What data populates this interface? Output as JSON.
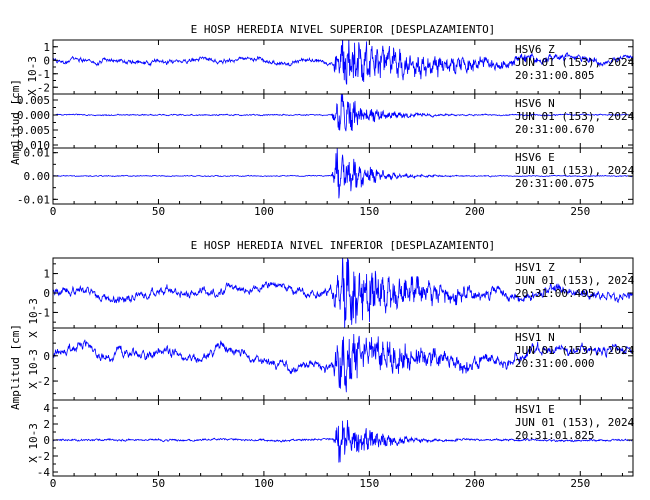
{
  "chart_data": [
    {
      "type": "line",
      "title": "E HOSP HEREDIA NIVEL SUPERIOR [DESPLAZAMIENTO]",
      "ylabel": "Amplitud [cm]",
      "xlim": [
        0,
        275
      ],
      "x_ticks": [
        0,
        50,
        100,
        150,
        200,
        250
      ],
      "x_tick_labels": [
        "0",
        "50",
        "100",
        "150",
        "200",
        "250"
      ],
      "grid": false,
      "color": "#0000ff",
      "series": [
        {
          "name": "HSV6 Z",
          "label_lines": [
            "HSV6 Z",
            "JUN 01 (153), 2024",
            "20:31:00.805"
          ],
          "scale_label": "X 10-3",
          "ylim": [
            -2.5,
            1.5
          ],
          "yticks": [
            -2,
            -1,
            0,
            1
          ],
          "yticklabels": [
            "-2",
            "-1",
            "0",
            "1"
          ],
          "shape": {
            "bg": 0.22,
            "event_amp": 1.8,
            "event_start": 132,
            "peak": 136,
            "decay": 40,
            "drift": 0.5,
            "baseline_tilt": 0.1,
            "seed": 3
          }
        },
        {
          "name": "HSV6 N",
          "label_lines": [
            "HSV6 N",
            "JUN 01 (153), 2024",
            "20:31:00.670"
          ],
          "scale_label": "",
          "ylim": [
            -0.011,
            0.007
          ],
          "yticks": [
            -0.01,
            -0.005,
            0.0,
            0.005
          ],
          "yticklabels": [
            "-0.010",
            "-0.005",
            "0.000",
            "0.005"
          ],
          "shape": {
            "bg": 0.0003,
            "event_amp": 0.0065,
            "event_start": 132,
            "peak": 136,
            "decay": 14,
            "drift": 0,
            "baseline_tilt": 0,
            "seed": 7
          }
        },
        {
          "name": "HSV6 E",
          "label_lines": [
            "HSV6 E",
            "JUN 01 (153), 2024",
            "20:31:00.075"
          ],
          "scale_label": "",
          "ylim": [
            -0.012,
            0.012
          ],
          "yticks": [
            -0.01,
            0.0,
            0.01
          ],
          "yticklabels": [
            "-0.01",
            "0.00",
            "0.01"
          ],
          "shape": {
            "bg": 0.0003,
            "event_amp": 0.011,
            "event_start": 132,
            "peak": 135,
            "decay": 12,
            "drift": 0,
            "baseline_tilt": 0,
            "seed": 11
          }
        }
      ]
    },
    {
      "type": "line",
      "title": "E HOSP HEREDIA NIVEL INFERIOR [DESPLAZAMIENTO]",
      "ylabel": "Amplitud [cm]",
      "xlim": [
        0,
        275
      ],
      "x_ticks": [
        0,
        50,
        100,
        150,
        200,
        250
      ],
      "x_tick_labels": [
        "0",
        "50",
        "100",
        "150",
        "200",
        "250"
      ],
      "grid": false,
      "color": "#0000ff",
      "series": [
        {
          "name": "HSV1 Z",
          "label_lines": [
            "HSV1 Z",
            "JUN 01 (153), 2024",
            "20:31:00.495"
          ],
          "scale_label": "X 10-3",
          "ylim": [
            -1.8,
            1.8
          ],
          "yticks": [
            -1,
            0,
            1
          ],
          "yticklabels": [
            "-1",
            "0",
            "1"
          ],
          "shape": {
            "bg": 0.28,
            "event_amp": 1.6,
            "event_start": 131,
            "peak": 137,
            "decay": 30,
            "drift": 0.45,
            "baseline_tilt": 0,
            "seed": 5
          }
        },
        {
          "name": "HSV1 N",
          "label_lines": [
            "HSV1 N",
            "JUN 01 (153), 2024",
            "20:31:00.000"
          ],
          "scale_label": "X 10-3",
          "ylim": [
            -3.5,
            2.2
          ],
          "yticks": [
            -2,
            0
          ],
          "yticklabels": [
            "-2",
            "0"
          ],
          "shape": {
            "bg": 0.45,
            "event_amp": 2.0,
            "event_start": 132,
            "peak": 136,
            "decay": 30,
            "drift": 0.6,
            "baseline_tilt": 0,
            "seed": 9
          }
        },
        {
          "name": "HSV1 E",
          "label_lines": [
            "HSV1 E",
            "JUN 01 (153), 2024",
            "20:31:01.825"
          ],
          "scale_label": "X 10-3",
          "ylim": [
            -4.5,
            5
          ],
          "yticks": [
            -4,
            -2,
            0,
            2,
            4
          ],
          "yticklabels": [
            "-4",
            "-2",
            "0",
            "2",
            "4"
          ],
          "shape": {
            "bg": 0.18,
            "event_amp": 3.2,
            "event_start": 133,
            "peak": 135,
            "decay": 14,
            "drift": 0.1,
            "baseline_tilt": 0,
            "seed": 13
          }
        }
      ]
    }
  ]
}
